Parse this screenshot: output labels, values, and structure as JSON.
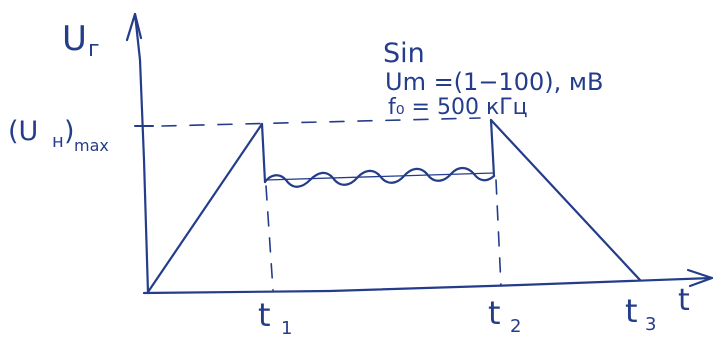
{
  "colors": {
    "ink": "#243d8a",
    "paper": "#ffffff"
  },
  "y_axis_label": "U",
  "y_axis_label_sub": "г",
  "x_axis_label": "t",
  "level_label": "(U",
  "level_label_sub": "н",
  "level_label_close": ")",
  "level_label_subscript": "max",
  "signal": {
    "type": "Sin",
    "amplitude_label": "Um =(1−100), мВ",
    "frequency_label": "f₀ = 500 кГц"
  },
  "time_marks": {
    "t1": "t",
    "t1_sub": "1",
    "t2": "t",
    "t2_sub": "2",
    "t3": "t",
    "t3_sub": "3"
  }
}
